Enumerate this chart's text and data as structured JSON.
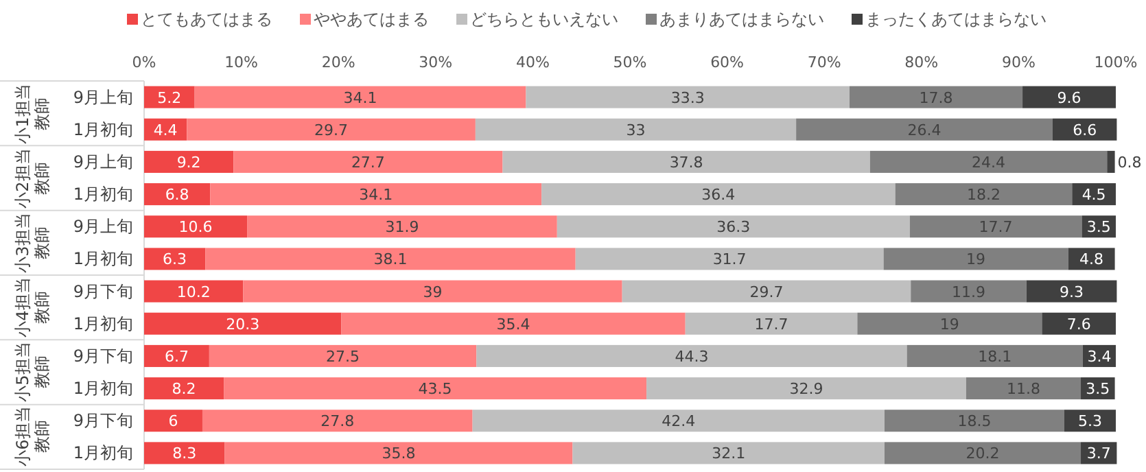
{
  "chart_data": {
    "type": "bar",
    "orientation": "horizontal",
    "stacked": true,
    "data_labels": true,
    "legend": "top",
    "grid": false,
    "categories": [
      "9月上旬",
      "1月初旬",
      "9月上旬",
      "1月初旬",
      "9月上旬",
      "1月初旬",
      "9月下旬",
      "1月初旬",
      "9月下旬",
      "1月初旬",
      "9月下旬",
      "1月初旬"
    ],
    "annotations": [
      "小1担当教師",
      "小2担当教師",
      "小3担当教師",
      "小4担当教師",
      "小5担当教師",
      "小6担当教師"
    ],
    "xlim": [
      0,
      100
    ],
    "xticks": [
      {
        "value": 0,
        "label": "0%"
      },
      {
        "value": 10,
        "label": "10%"
      },
      {
        "value": 20,
        "label": "20%"
      },
      {
        "value": 30,
        "label": "30%"
      },
      {
        "value": 40,
        "label": "40%"
      },
      {
        "value": 50,
        "label": "50%"
      },
      {
        "value": 60,
        "label": "60%"
      },
      {
        "value": 70,
        "label": "70%"
      },
      {
        "value": 80,
        "label": "80%"
      },
      {
        "value": 90,
        "label": "90%"
      },
      {
        "value": 100,
        "label": "100%"
      }
    ],
    "series": [
      {
        "name": "とてもあてはまる",
        "color": "#f04646",
        "values": [
          5.2,
          4.4,
          9.2,
          6.8,
          10.6,
          6.3,
          10.2,
          20.3,
          6.7,
          8.2,
          6,
          8.3
        ]
      },
      {
        "name": "ややあてはまる",
        "color": "#ff8080",
        "values": [
          34.1,
          29.7,
          27.7,
          34.1,
          31.9,
          38.1,
          39,
          35.4,
          27.5,
          43.5,
          27.8,
          35.8
        ]
      },
      {
        "name": "どちらともいえない",
        "color": "#bfbfbf",
        "values": [
          33.3,
          33,
          37.8,
          36.4,
          36.3,
          31.7,
          29.7,
          17.7,
          44.3,
          32.9,
          42.4,
          32.1
        ]
      },
      {
        "name": "あまりあてはまらない",
        "color": "#808080",
        "values": [
          17.8,
          26.4,
          24.4,
          18.2,
          17.7,
          19,
          11.9,
          19,
          18.1,
          11.8,
          18.5,
          20.2
        ]
      },
      {
        "name": "まったくあてはまらない",
        "color": "#404040",
        "values": [
          9.6,
          6.6,
          0.8,
          4.5,
          3.5,
          4.8,
          9.3,
          7.6,
          3.4,
          3.5,
          5.3,
          3.7
        ]
      }
    ]
  }
}
